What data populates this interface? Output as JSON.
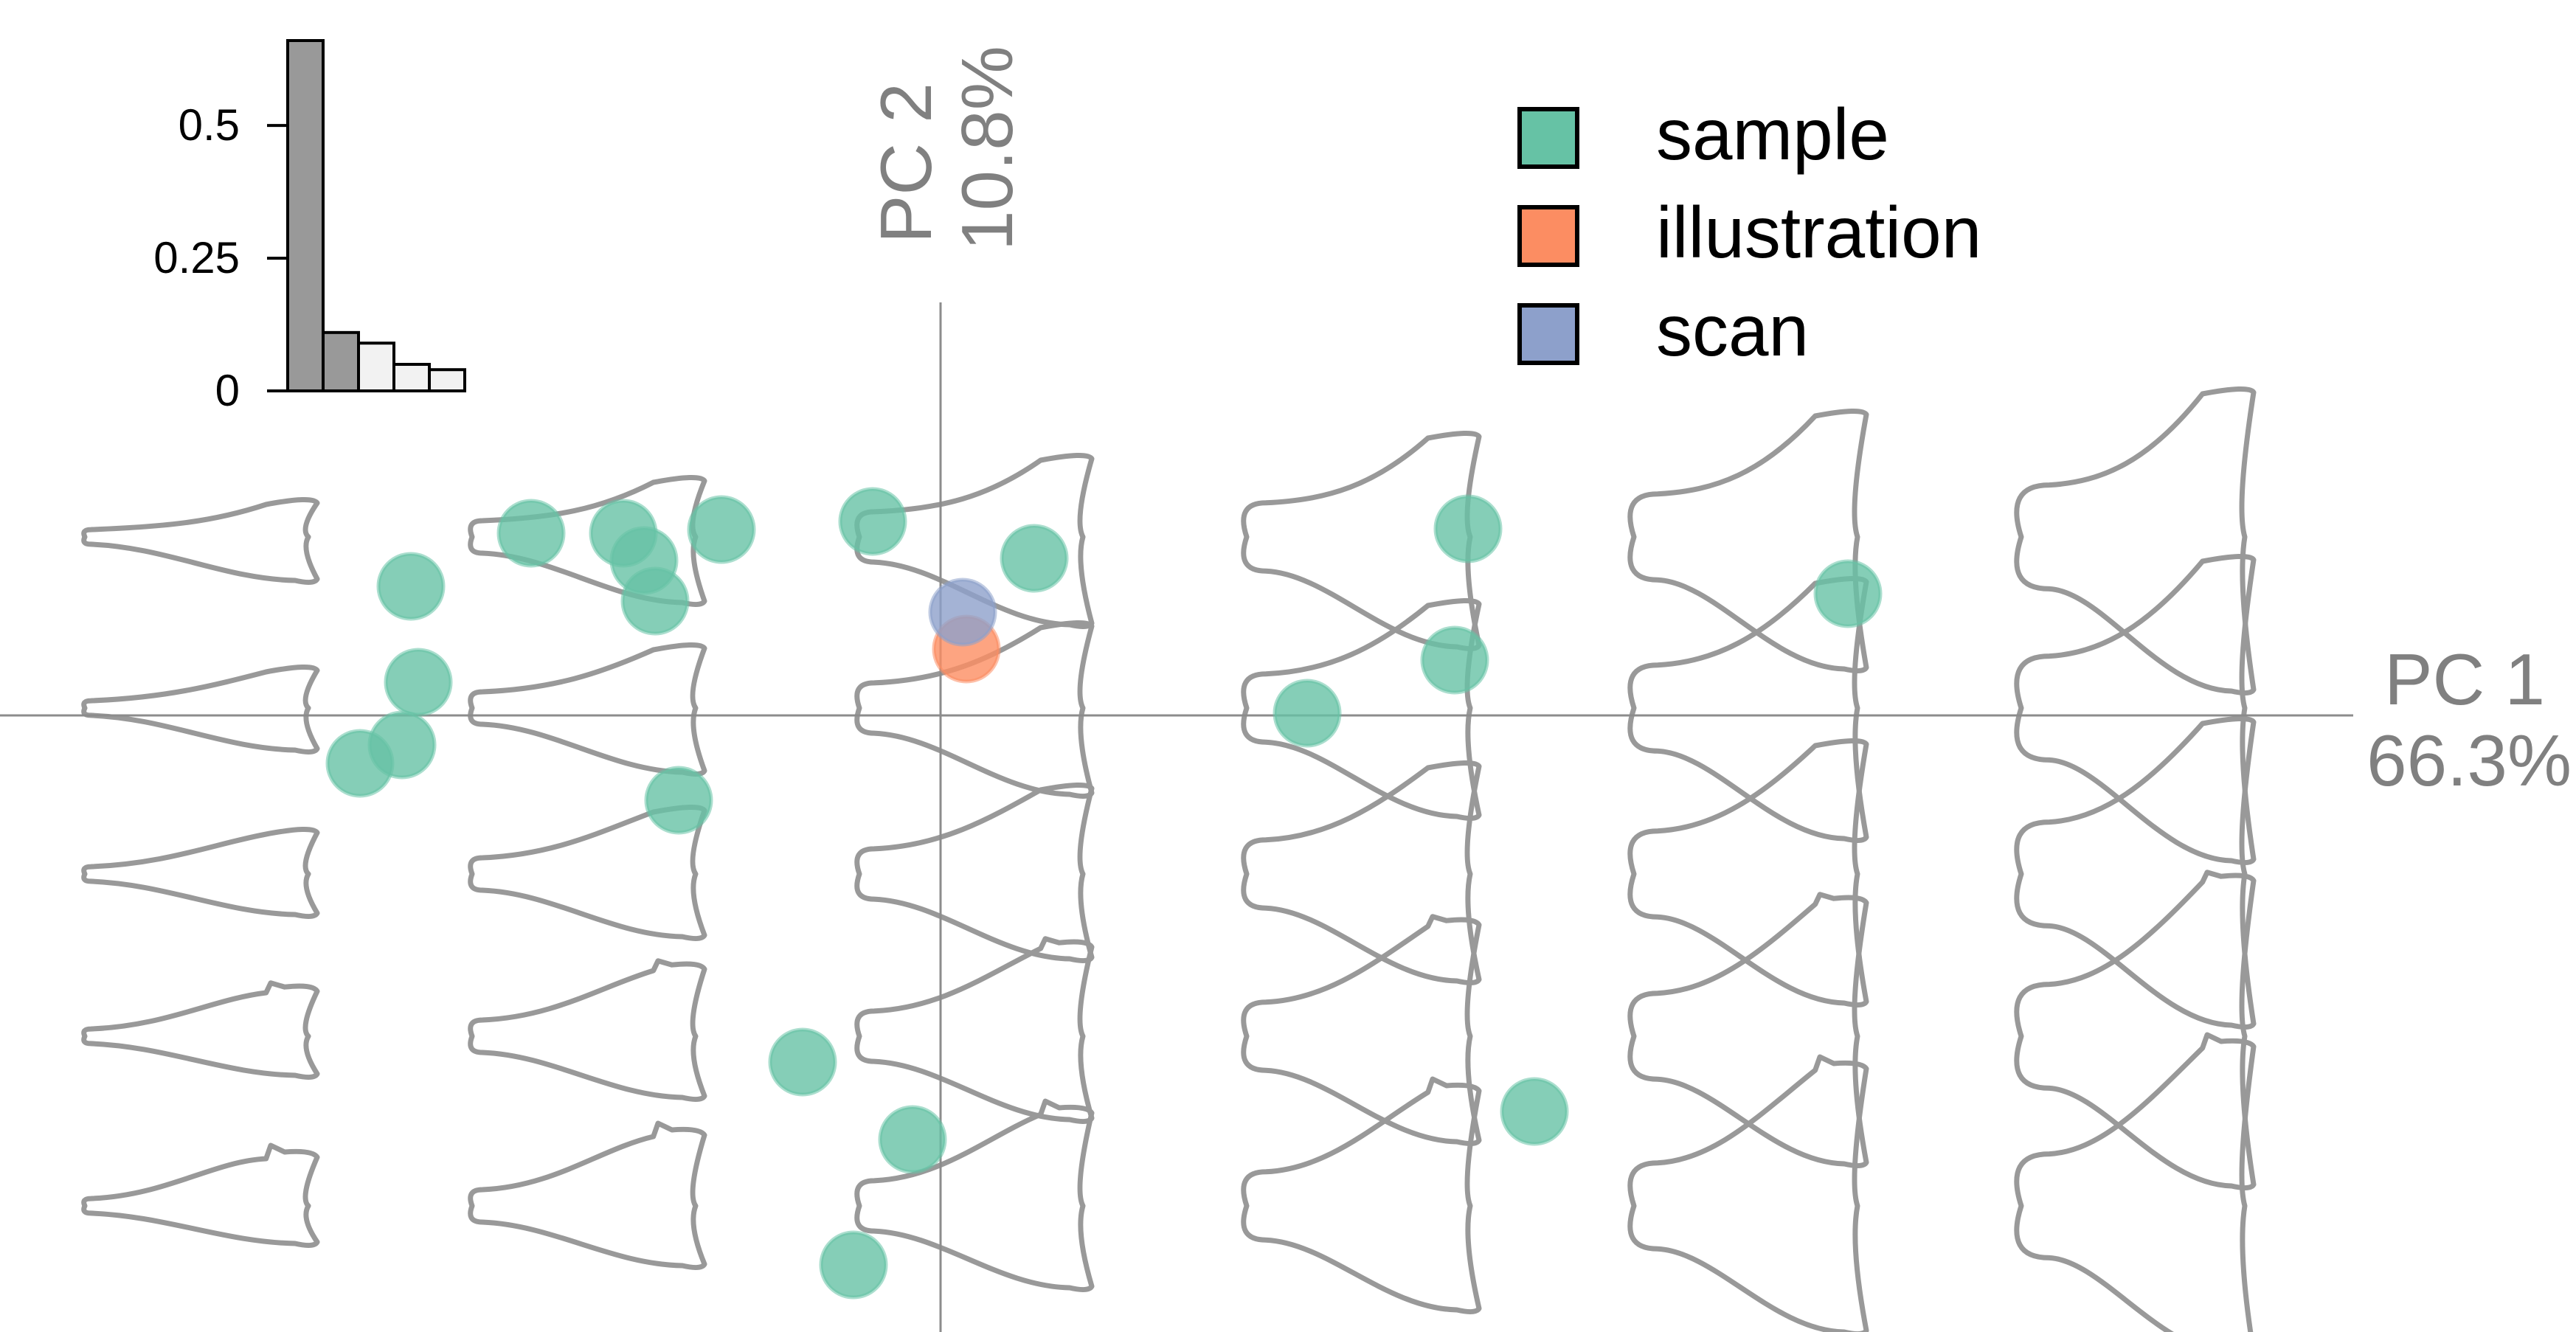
{
  "chart_data": {
    "type": "scatter",
    "title": "",
    "x_axis": {
      "name": "PC 1",
      "variance": "66.3%"
    },
    "y_axis": {
      "name": "PC 2",
      "variance": "10.8%"
    },
    "xlim": [
      -1.0,
      1.6
    ],
    "ylim": [
      -1.12,
      0.9
    ],
    "grid": false,
    "legend_position": "top-center",
    "series": [
      {
        "name": "sample",
        "color": "#66c2a5",
        "points": [
          [
            -0.787,
            -0.065
          ],
          [
            -0.708,
            0.045
          ],
          [
            -0.718,
            0.175
          ],
          [
            -0.73,
            -0.04
          ],
          [
            -0.555,
            0.247
          ],
          [
            -0.43,
            0.247
          ],
          [
            -0.402,
            0.21
          ],
          [
            -0.387,
            0.155
          ],
          [
            -0.297,
            0.252
          ],
          [
            -0.092,
            0.263
          ],
          [
            0.127,
            0.213
          ],
          [
            0.497,
            0.003
          ],
          [
            0.697,
            0.075
          ],
          [
            0.715,
            0.253
          ],
          [
            1.23,
            0.165
          ],
          [
            -0.355,
            -0.115
          ],
          [
            -0.187,
            -0.47
          ],
          [
            -0.038,
            -0.575
          ],
          [
            -0.118,
            -0.745
          ],
          [
            0.805,
            -0.537
          ]
        ]
      },
      {
        "name": "illustration",
        "color": "#fc8d62",
        "points": [
          [
            0.035,
            0.09
          ]
        ]
      },
      {
        "name": "scan",
        "color": "#8da0cb",
        "points": [
          [
            0.03,
            0.14
          ]
        ]
      }
    ],
    "morphospace": {
      "pc1_positions": [
        -1.0,
        -0.6,
        -0.2,
        0.2,
        0.6,
        1.0
      ],
      "pc2_positions": [
        0.27,
        0.0,
        -0.25,
        -0.49,
        -0.74
      ]
    },
    "inset_bar": {
      "type": "bar",
      "title": "",
      "values": [
        0.66,
        0.11,
        0.09,
        0.05,
        0.04
      ],
      "highlighted_count": 2,
      "ylim": [
        0,
        0.66
      ],
      "yticks": [
        {
          "value": 0.5,
          "label": "0.5"
        },
        {
          "value": 0.25,
          "label": "0.25"
        },
        {
          "value": 0,
          "label": "0"
        }
      ],
      "colors": {
        "highlighted": "#999999",
        "other": "#f2f2f2"
      }
    }
  }
}
